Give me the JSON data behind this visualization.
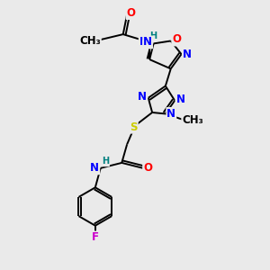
{
  "bg_color": "#eaeaea",
  "bond_color": "#000000",
  "atom_colors": {
    "N": "#0000ff",
    "O": "#ff0000",
    "S": "#cccc00",
    "F": "#cc00cc",
    "H": "#008080",
    "C": "#000000"
  },
  "font_size": 8.5
}
